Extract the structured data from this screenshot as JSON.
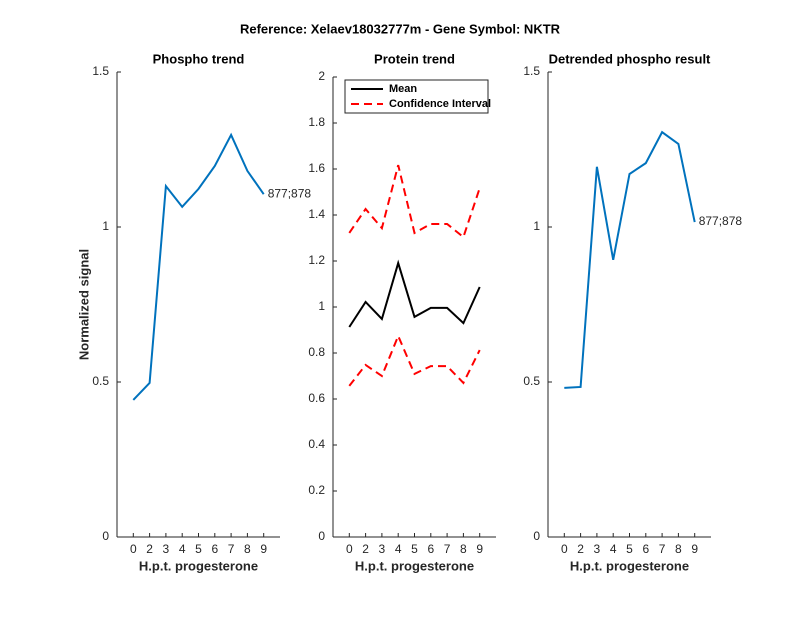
{
  "title": "Reference:  Xelaev18032777m - Gene Symbol:  NKTR",
  "chart_data": [
    {
      "type": "line",
      "title": "Phospho trend",
      "x_label": "H.p.t. progesterone",
      "y_label": "Normalized signal",
      "categories": [
        "0",
        "2",
        "3",
        "4",
        "5",
        "6",
        "7",
        "8",
        "9"
      ],
      "series": [
        {
          "name": "877;878",
          "color": "#0072bd",
          "values": [
            0.442,
            0.497,
            1.132,
            1.065,
            1.123,
            1.197,
            1.297,
            1.181,
            1.106
          ]
        }
      ],
      "ylim": [
        0,
        1.5
      ],
      "yticks": [
        0,
        0.5,
        1,
        1.5
      ]
    },
    {
      "type": "line",
      "title": "Protein trend",
      "x_label": "H.p.t. progesterone",
      "categories": [
        "0",
        "2",
        "3",
        "4",
        "5",
        "6",
        "7",
        "8",
        "9"
      ],
      "series": [
        {
          "name": "Mean",
          "color": "#000000",
          "dashed": false,
          "values": [
            0.913,
            1.022,
            0.948,
            1.191,
            0.957,
            0.996,
            0.996,
            0.93,
            1.087
          ]
        },
        {
          "name": "Confidence Interval",
          "color": "#ff0000",
          "dashed": true,
          "values": [
            1.322,
            1.426,
            1.343,
            1.617,
            1.322,
            1.361,
            1.361,
            1.304,
            1.517
          ],
          "lower_values": [
            0.657,
            0.748,
            0.7,
            0.874,
            0.709,
            0.743,
            0.743,
            0.67,
            0.813
          ]
        }
      ],
      "legend": "upper left",
      "ylim": [
        0,
        2
      ],
      "yticks": [
        0,
        {
          "value": 0.2,
          "label": "0.2"
        },
        {
          "value": 0.4,
          "label": "0.4"
        },
        {
          "value": 0.6,
          "label": "0.6"
        },
        {
          "value": 0.8,
          "label": "0.8"
        },
        1,
        {
          "value": 1.2,
          "label": "1.2"
        },
        {
          "value": 1.4,
          "label": "1.4"
        },
        {
          "value": 1.6,
          "label": "1.6"
        },
        {
          "value": 1.8,
          "label": "1.8"
        },
        2
      ]
    },
    {
      "type": "line",
      "title": "Detrended phospho result",
      "x_label": "H.p.t. progesterone",
      "categories": [
        "0",
        "2",
        "3",
        "4",
        "5",
        "6",
        "7",
        "8",
        "9"
      ],
      "series": [
        {
          "name": "877;878",
          "color": "#0072bd",
          "values": [
            0.481,
            0.484,
            1.194,
            0.894,
            1.171,
            1.206,
            1.306,
            1.268,
            1.016
          ]
        }
      ],
      "ylim": [
        0,
        1.5
      ],
      "yticks": [
        0,
        0.5,
        1,
        1.5
      ]
    }
  ]
}
